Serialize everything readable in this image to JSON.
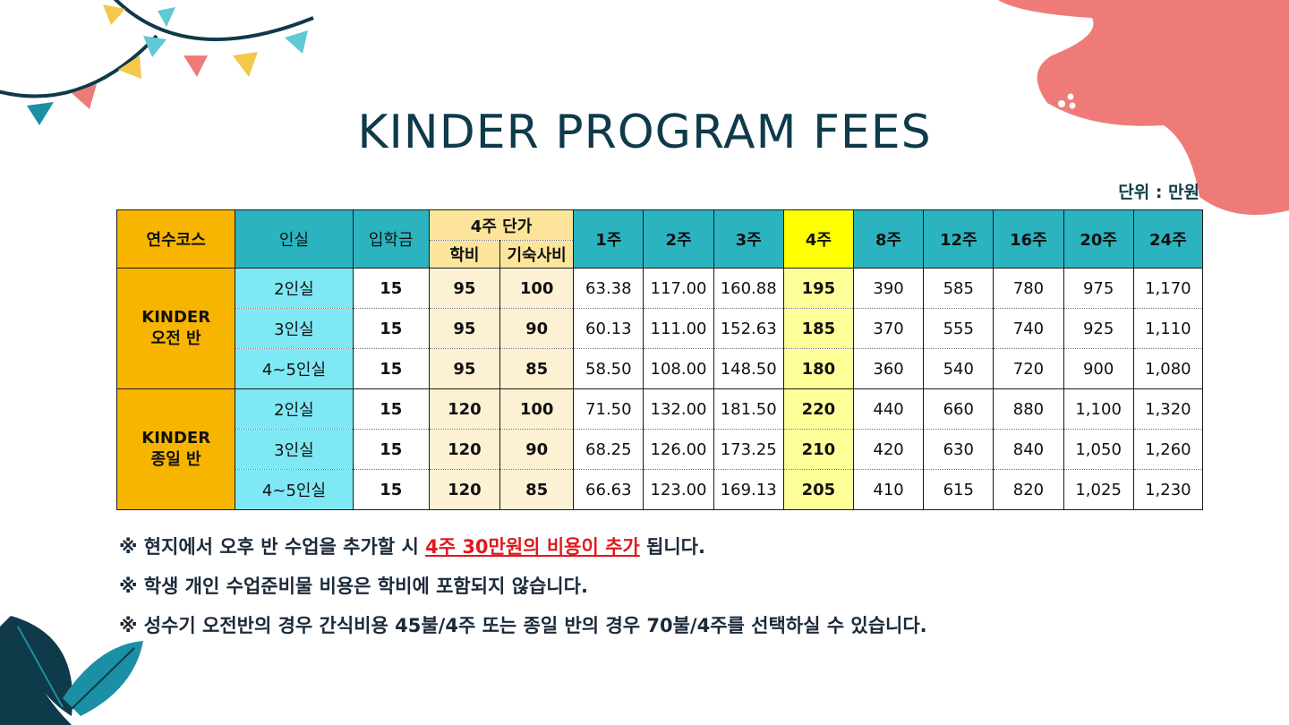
{
  "title": "KINDER PROGRAM FEES",
  "unit_label": "단위 : 만원",
  "header": {
    "course": "연수코스",
    "room": "인실",
    "entry_fee": "입학금",
    "unit_price_group": "4주 단가",
    "tuition": "학비",
    "dorm_fee": "기숙사비",
    "weeks": [
      "1주",
      "2주",
      "3주",
      "4주",
      "8주",
      "12주",
      "16주",
      "20주",
      "24주"
    ]
  },
  "groups": [
    {
      "course_line1": "KINDER",
      "course_line2": "오전 반",
      "rows": [
        {
          "room": "2인실",
          "entry": "15",
          "tuition": "95",
          "dorm": "100",
          "w1": "63.38",
          "w2": "117.00",
          "w3": "160.88",
          "w4": "195",
          "w8": "390",
          "w12": "585",
          "w16": "780",
          "w20": "975",
          "w24": "1,170"
        },
        {
          "room": "3인실",
          "entry": "15",
          "tuition": "95",
          "dorm": "90",
          "w1": "60.13",
          "w2": "111.00",
          "w3": "152.63",
          "w4": "185",
          "w8": "370",
          "w12": "555",
          "w16": "740",
          "w20": "925",
          "w24": "1,110"
        },
        {
          "room": "4~5인실",
          "entry": "15",
          "tuition": "95",
          "dorm": "85",
          "w1": "58.50",
          "w2": "108.00",
          "w3": "148.50",
          "w4": "180",
          "w8": "360",
          "w12": "540",
          "w16": "720",
          "w20": "900",
          "w24": "1,080"
        }
      ]
    },
    {
      "course_line1": "KINDER",
      "course_line2": "종일 반",
      "rows": [
        {
          "room": "2인실",
          "entry": "15",
          "tuition": "120",
          "dorm": "100",
          "w1": "71.50",
          "w2": "132.00",
          "w3": "181.50",
          "w4": "220",
          "w8": "440",
          "w12": "660",
          "w16": "880",
          "w20": "1,100",
          "w24": "1,320"
        },
        {
          "room": "3인실",
          "entry": "15",
          "tuition": "120",
          "dorm": "90",
          "w1": "68.25",
          "w2": "126.00",
          "w3": "173.25",
          "w4": "210",
          "w8": "420",
          "w12": "630",
          "w16": "840",
          "w20": "1,050",
          "w24": "1,260"
        },
        {
          "room": "4~5인실",
          "entry": "15",
          "tuition": "120",
          "dorm": "85",
          "w1": "66.63",
          "w2": "123.00",
          "w3": "169.13",
          "w4": "205",
          "w8": "410",
          "w12": "615",
          "w16": "820",
          "w20": "1,025",
          "w24": "1,230"
        }
      ]
    }
  ],
  "notes": {
    "n1_prefix": "※ 현지에서 오후 반 수업을 추가할 시 ",
    "n1_highlight": "4주 30만원의 비용이 추가",
    "n1_suffix": " 됩니다.",
    "n2": "※ 학생 개인 수업준비물 비용은 학비에 포함되지 않습니다.",
    "n3": "※ 성수기 오전반의 경우 간식비용 45불/4주 또는 종일 반의 경우 70불/4주를 선택하실 수 있습니다."
  },
  "colors": {
    "title": "#0e3a4a",
    "course_bg": "#f8b500",
    "header_teal": "#2bb4c0",
    "room_bg": "#7fe8f5",
    "price_bg": "#fdf1d4",
    "week4_header": "#ffff00",
    "week4_cells": "#ffff99",
    "highlight_text": "#e0191e",
    "blob": "#ef7b78"
  }
}
